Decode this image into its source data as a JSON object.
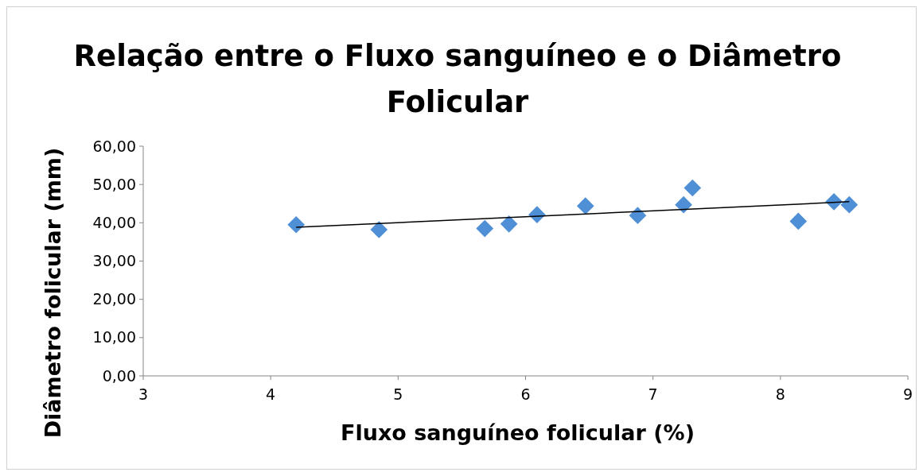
{
  "chart_data": {
    "type": "scatter",
    "title": "Relação entre o Fluxo sanguíneo e o Diâmetro Folicular",
    "xlabel": "Fluxo sanguíneo folicular (%)",
    "ylabel": "Diâmetro folicular (mm)",
    "series": [
      {
        "color": "#4f8fd6",
        "marker": "diamond",
        "x": [
          4.2,
          4.85,
          5.68,
          5.87,
          6.09,
          6.47,
          6.88,
          7.24,
          7.31,
          8.14,
          8.42,
          8.54
        ],
        "values": [
          39.5,
          38.2,
          38.5,
          39.7,
          42.1,
          44.4,
          41.9,
          44.7,
          49.1,
          40.4,
          45.5,
          44.7
        ]
      },
      {
        "type": "line",
        "color": "#000000",
        "marker": "none",
        "x": [
          4.2,
          8.54
        ],
        "values": [
          38.8,
          45.5
        ]
      }
    ],
    "xlim": [
      3,
      9
    ],
    "xticks": [
      3,
      4,
      5,
      6,
      7,
      8,
      9
    ],
    "ylim": [
      0,
      60
    ],
    "yticks": [
      {
        "value": 0,
        "label": "0,00"
      },
      {
        "value": 10,
        "label": "10,00"
      },
      {
        "value": 20,
        "label": "20,00"
      },
      {
        "value": 30,
        "label": "30,00"
      },
      {
        "value": 40,
        "label": "40,00"
      },
      {
        "value": 50,
        "label": "50,00"
      },
      {
        "value": 60,
        "label": "60,00"
      }
    ],
    "grid": false
  }
}
